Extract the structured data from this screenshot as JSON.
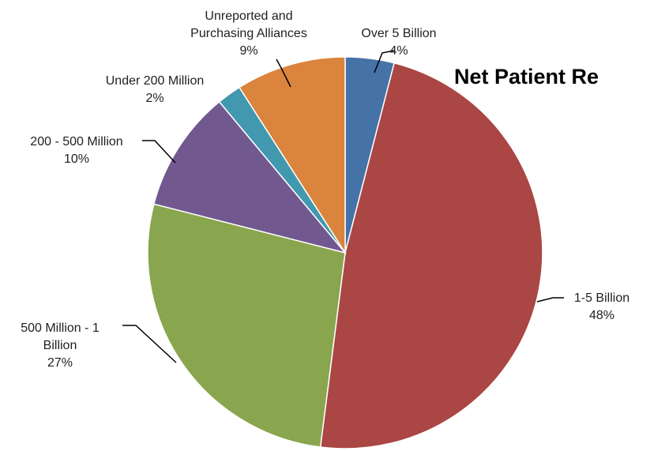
{
  "chart_data": {
    "type": "pie",
    "title": "Net Patient Re",
    "slices": [
      {
        "label_lines": [
          "Over 5 Billion"
        ],
        "percent_label": "4%",
        "value": 4,
        "color": "#4572A7"
      },
      {
        "label_lines": [
          "1-5 Billion"
        ],
        "percent_label": "48%",
        "value": 48,
        "color": "#AA4643"
      },
      {
        "label_lines": [
          "500 Million - 1",
          "Billion"
        ],
        "percent_label": "27%",
        "value": 27,
        "color": "#89A54E"
      },
      {
        "label_lines": [
          "200 - 500 Million"
        ],
        "percent_label": "10%",
        "value": 10,
        "color": "#71588F"
      },
      {
        "label_lines": [
          "Under 200 Million"
        ],
        "percent_label": "2%",
        "value": 2,
        "color": "#4198AF"
      },
      {
        "label_lines": [
          "Unreported  and",
          "Purchasing Alliances"
        ],
        "percent_label": "9%",
        "value": 9,
        "color": "#DB843D"
      }
    ],
    "legend": "none"
  }
}
